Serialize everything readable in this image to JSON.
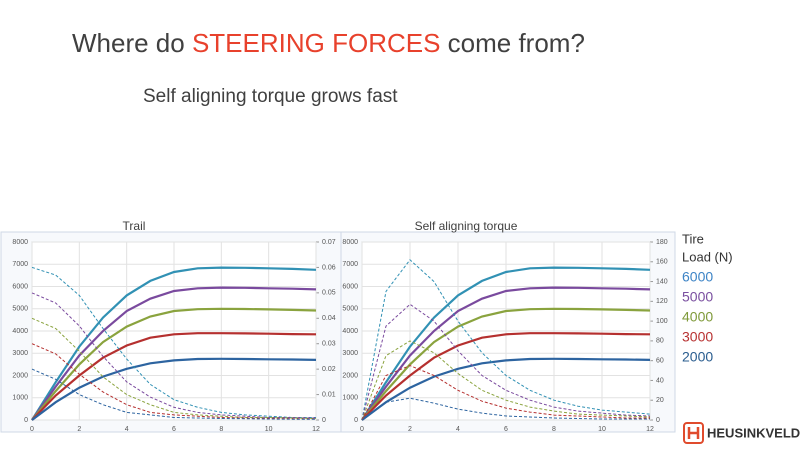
{
  "slide": {
    "title_parts": [
      "Where do ",
      "STEERING FORCES",
      " come from?"
    ],
    "subtitle": "Self aligning torque grows fast"
  },
  "legend": {
    "title": [
      "Tire",
      "Load (N)"
    ],
    "entries": [
      {
        "name": "6000",
        "color": "#3d84c6"
      },
      {
        "name": "5000",
        "color": "#7a4fa0"
      },
      {
        "name": "4000",
        "color": "#7f9a3a"
      },
      {
        "name": "3000",
        "color": "#b83232"
      },
      {
        "name": "2000",
        "color": "#2a5d8f"
      }
    ]
  },
  "logo": "HEUSINKVELD",
  "chart_data": [
    {
      "type": "line",
      "title": "Trail",
      "x": [
        0,
        1,
        2,
        3,
        4,
        5,
        6,
        7,
        8,
        9,
        10,
        11,
        12
      ],
      "xlim": [
        0,
        12
      ],
      "xticks": [
        0,
        2,
        4,
        6,
        8,
        10,
        12
      ],
      "ylim": [
        0,
        8000
      ],
      "yticks": [
        0,
        1000,
        2000,
        3000,
        4000,
        5000,
        6000,
        7000,
        8000
      ],
      "y2lim": [
        0,
        0.07
      ],
      "y2ticks": [
        0,
        0.01,
        0.02,
        0.03,
        0.04,
        0.05,
        0.06,
        0.07
      ],
      "grid": true,
      "series": [
        {
          "color": "#3191b4",
          "values": [
            0,
            1700,
            3300,
            4600,
            5600,
            6250,
            6650,
            6820,
            6850,
            6840,
            6820,
            6790,
            6750
          ]
        },
        {
          "color": "#7a4a9e",
          "values": [
            0,
            1500,
            2900,
            4000,
            4900,
            5450,
            5800,
            5920,
            5950,
            5940,
            5920,
            5900,
            5870
          ]
        },
        {
          "color": "#8aa33e",
          "values": [
            0,
            1300,
            2500,
            3500,
            4200,
            4650,
            4900,
            4980,
            5000,
            4990,
            4970,
            4950,
            4920
          ]
        },
        {
          "color": "#b5302f",
          "values": [
            0,
            1100,
            2000,
            2800,
            3350,
            3700,
            3850,
            3900,
            3900,
            3890,
            3880,
            3860,
            3850
          ]
        },
        {
          "color": "#2d64a0",
          "values": [
            0,
            800,
            1450,
            1950,
            2300,
            2550,
            2680,
            2740,
            2750,
            2740,
            2730,
            2720,
            2700
          ]
        },
        {
          "color": "#3191b4",
          "axis": "y2",
          "dashed": true,
          "values": [
            0.06,
            0.057,
            0.049,
            0.036,
            0.024,
            0.014,
            0.008,
            0.005,
            0.003,
            0.002,
            0.0015,
            0.001,
            0.001
          ]
        },
        {
          "color": "#7a4a9e",
          "axis": "y2",
          "dashed": true,
          "values": [
            0.05,
            0.046,
            0.037,
            0.025,
            0.015,
            0.009,
            0.005,
            0.003,
            0.002,
            0.0015,
            0.001,
            0.001,
            0.0008
          ]
        },
        {
          "color": "#8aa33e",
          "axis": "y2",
          "dashed": true,
          "values": [
            0.04,
            0.036,
            0.027,
            0.017,
            0.01,
            0.006,
            0.003,
            0.002,
            0.0015,
            0.001,
            0.001,
            0.0008,
            0.0006
          ]
        },
        {
          "color": "#b5302f",
          "axis": "y2",
          "dashed": true,
          "values": [
            0.03,
            0.026,
            0.018,
            0.011,
            0.006,
            0.003,
            0.002,
            0.0015,
            0.001,
            0.0008,
            0.0006,
            0.0005,
            0.0004
          ]
        },
        {
          "color": "#2d64a0",
          "axis": "y2",
          "dashed": true,
          "values": [
            0.02,
            0.016,
            0.01,
            0.006,
            0.003,
            0.002,
            0.001,
            0.0008,
            0.0006,
            0.0005,
            0.0004,
            0.0003,
            0.0003
          ]
        }
      ]
    },
    {
      "type": "line",
      "title": "Self aligning torque",
      "x": [
        0,
        1,
        2,
        3,
        4,
        5,
        6,
        7,
        8,
        9,
        10,
        11,
        12
      ],
      "xlim": [
        0,
        12
      ],
      "xticks": [
        0,
        2,
        4,
        6,
        8,
        10,
        12
      ],
      "ylim": [
        0,
        8000
      ],
      "yticks": [
        0,
        1000,
        2000,
        3000,
        4000,
        5000,
        6000,
        7000,
        8000
      ],
      "y2lim": [
        0,
        180
      ],
      "y2ticks": [
        0,
        20,
        40,
        60,
        80,
        100,
        120,
        140,
        160,
        180
      ],
      "grid": true,
      "series": [
        {
          "color": "#3191b4",
          "values": [
            0,
            1700,
            3300,
            4600,
            5600,
            6250,
            6650,
            6820,
            6850,
            6840,
            6820,
            6790,
            6750
          ]
        },
        {
          "color": "#7a4a9e",
          "values": [
            0,
            1500,
            2900,
            4000,
            4900,
            5450,
            5800,
            5920,
            5950,
            5940,
            5920,
            5900,
            5870
          ]
        },
        {
          "color": "#8aa33e",
          "values": [
            0,
            1300,
            2500,
            3500,
            4200,
            4650,
            4900,
            4980,
            5000,
            4990,
            4970,
            4950,
            4920
          ]
        },
        {
          "color": "#b5302f",
          "values": [
            0,
            1100,
            2000,
            2800,
            3350,
            3700,
            3850,
            3900,
            3900,
            3890,
            3880,
            3860,
            3850
          ]
        },
        {
          "color": "#2d64a0",
          "values": [
            0,
            800,
            1450,
            1950,
            2300,
            2550,
            2680,
            2740,
            2750,
            2740,
            2730,
            2720,
            2700
          ]
        },
        {
          "color": "#3191b4",
          "axis": "y2",
          "dashed": true,
          "values": [
            0,
            130,
            162,
            140,
            100,
            68,
            45,
            30,
            20,
            14,
            10,
            8,
            6
          ]
        },
        {
          "color": "#7a4a9e",
          "axis": "y2",
          "dashed": true,
          "values": [
            0,
            95,
            117,
            100,
            70,
            45,
            30,
            20,
            13,
            9,
            7,
            5,
            4
          ]
        },
        {
          "color": "#8aa33e",
          "axis": "y2",
          "dashed": true,
          "values": [
            0,
            65,
            80,
            68,
            47,
            30,
            20,
            13,
            9,
            6,
            5,
            4,
            3
          ]
        },
        {
          "color": "#b5302f",
          "axis": "y2",
          "dashed": true,
          "values": [
            0,
            45,
            55,
            45,
            30,
            19,
            12,
            8,
            5,
            4,
            3,
            2,
            2
          ]
        },
        {
          "color": "#2d64a0",
          "axis": "y2",
          "dashed": true,
          "values": [
            0,
            18,
            22,
            17,
            11,
            7,
            4,
            3,
            2,
            1.5,
            1,
            1,
            1
          ]
        }
      ]
    }
  ]
}
